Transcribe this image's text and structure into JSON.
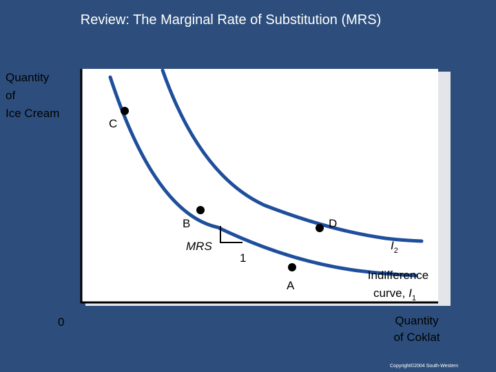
{
  "title": "Review: The Marginal Rate of Substitution (MRS)",
  "y_axis_label_lines": [
    "Quantity",
    "of",
    "Ice Cream"
  ],
  "x_axis_label_lines": [
    "Quantity",
    "of Coklat"
  ],
  "origin_label": "0",
  "points": {
    "C": "C",
    "B": "B",
    "D": "D",
    "A": "A"
  },
  "mrs_label": "MRS",
  "run_label": "1",
  "curve_labels": {
    "i2_letter": "I",
    "i2_sub": "2",
    "i1_line1": "Indifference",
    "i1_line2_prefix": "curve, ",
    "i1_letter": "I",
    "i1_sub": "1"
  },
  "copyright": "Copyright©2004 South-Western",
  "colors": {
    "background": "#2d4e7c",
    "curve": "#1f4f9c",
    "plot_area": "#ffffff",
    "plot_shadow": "#e3e5ea"
  }
}
